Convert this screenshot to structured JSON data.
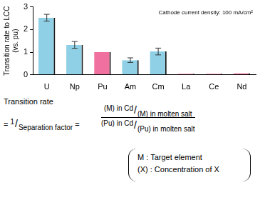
{
  "chart_data": {
    "type": "bar",
    "y_label": [
      "Transition rate to LCC",
      "(vs. pu)"
    ],
    "annotations": [
      "Cathode current density: 100 mA/cm²"
    ],
    "categories": [
      "U",
      "Np",
      "Pu",
      "Am",
      "Cm",
      "La",
      "Ce",
      "Nd"
    ],
    "values": [
      2.52,
      1.32,
      1.0,
      0.65,
      1.03,
      0.05,
      0.05,
      0.07
    ],
    "error_bars": [
      0.15,
      0.15,
      null,
      0.1,
      0.15,
      null,
      null,
      null
    ],
    "colors": [
      "#8fd0e6",
      "#8fd0e6",
      "#f0709f",
      "#8fd0e6",
      "#8fd0e6",
      "#f0709f",
      "#f0709f",
      "#f0709f"
    ],
    "ylim": [
      0,
      3
    ],
    "yticks": [
      0,
      1,
      2,
      3
    ],
    "grid": false
  },
  "formula": {
    "lhs": "Transition rate",
    "equals": "=",
    "one": "1",
    "slash": "/",
    "separation": "Separation factor",
    "numerator": [
      "(M) in Cd",
      "(M) in molten salt"
    ],
    "denominator": [
      "(Pu) in Cd",
      "(Pu) in molten salt"
    ],
    "key": [
      "M : Target element",
      "(X) : Concentration of X"
    ]
  }
}
